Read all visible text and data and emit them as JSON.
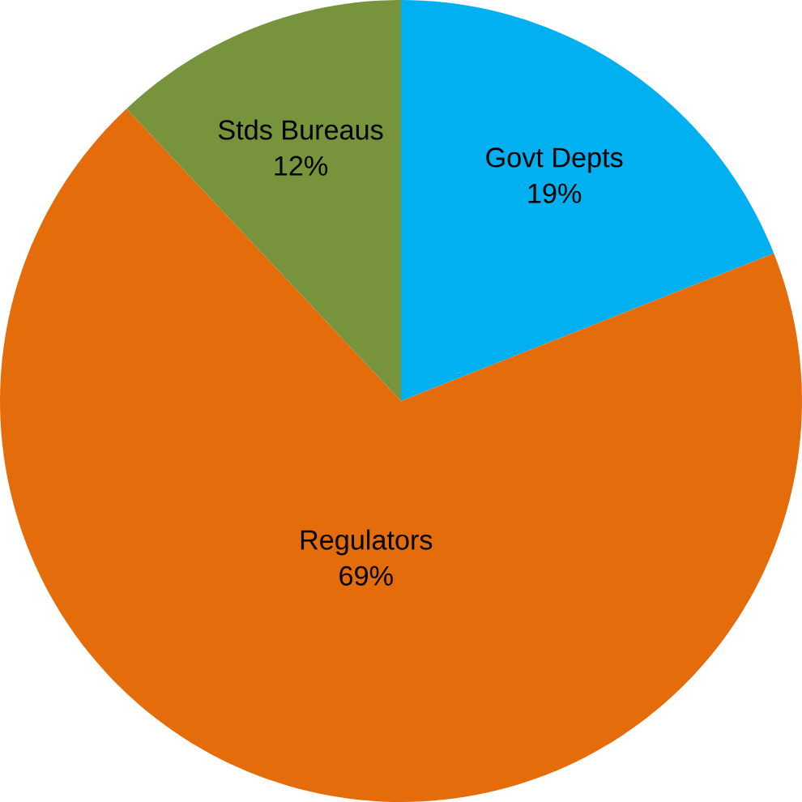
{
  "chart_data": {
    "type": "pie",
    "categories": [
      "Govt Depts",
      "Regulators",
      "Stds Bureaus"
    ],
    "values": [
      19,
      69,
      12
    ],
    "colors": [
      "#00b0f0",
      "#e46c0a",
      "#77933c"
    ],
    "value_labels": [
      "19%",
      "69%",
      "12%"
    ]
  }
}
